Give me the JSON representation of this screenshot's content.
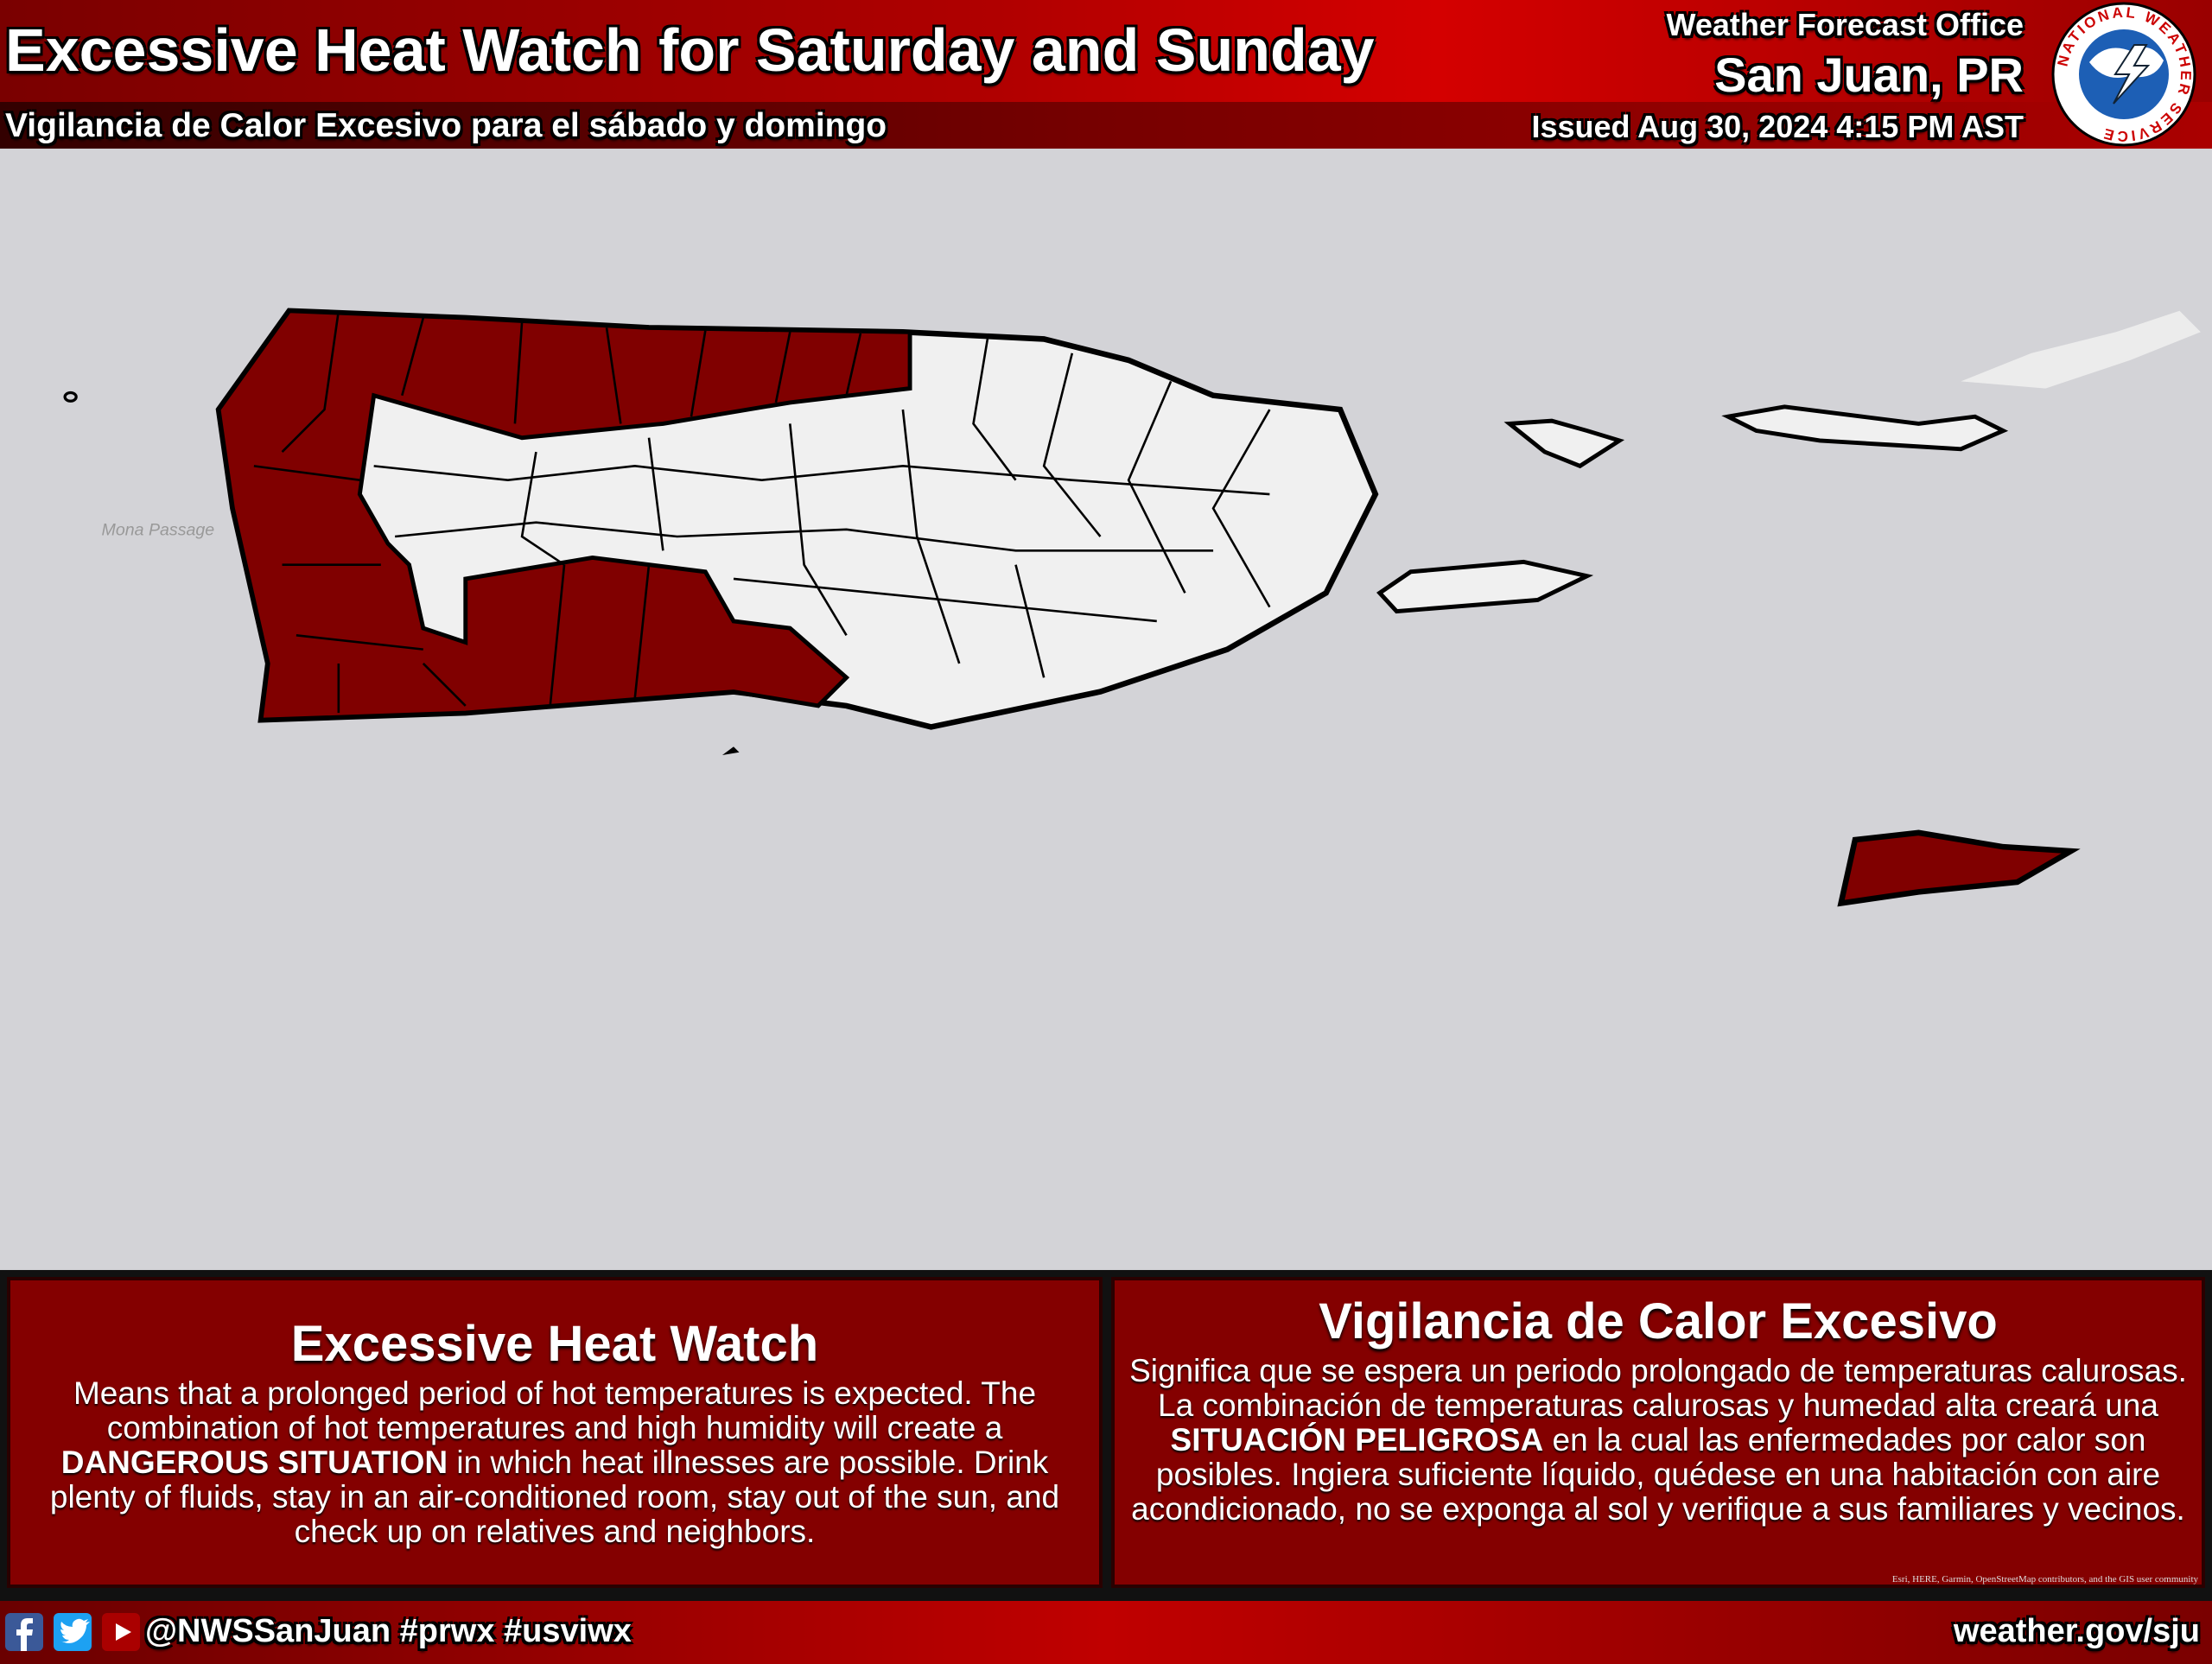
{
  "header": {
    "title": "Excessive Heat Watch for Saturday and Sunday",
    "subtitle": "Vigilancia de Calor Excesivo para el sábado y domingo",
    "office": "Weather Forecast Office",
    "location": "San Juan, PR",
    "issued": "Issued Aug 30, 2024 4:15 PM AST",
    "logo_text": "NATIONAL WEATHER SERVICE"
  },
  "map": {
    "label": "Mona Passage"
  },
  "panels": [
    {
      "title": "Excessive Heat Watch",
      "body": {
        "before": "Means that a prolonged period of hot temperatures is expected. The combination of hot temperatures and high humidity will create a ",
        "emphasis": "DANGEROUS SITUATION",
        "after": " in which heat illnesses are possible. Drink plenty of fluids, stay in an air-conditioned room, stay out of the sun, and check up on relatives and neighbors."
      }
    },
    {
      "title": "Vigilancia de Calor Excesivo",
      "body": {
        "before": "Significa que se espera un periodo prolongado de temperaturas calurosas. La combinación de temperaturas calurosas y humedad alta creará una ",
        "emphasis": "SITUACIÓN PELIGROSA",
        "after": " en la cual las enfermedades por calor son posibles. Ingiera suficiente líquido, quédese en una habitación con aire acondicionado, no se exponga al sol y verifique a sus familiares y vecinos."
      }
    }
  ],
  "attribution": "Esri, HERE, Garmin, OpenStreetMap contributors, and the GIS user community",
  "footer": {
    "handle": "@NWSSanJuan #prwx #usviwx",
    "url": "weather.gov/sju"
  }
}
